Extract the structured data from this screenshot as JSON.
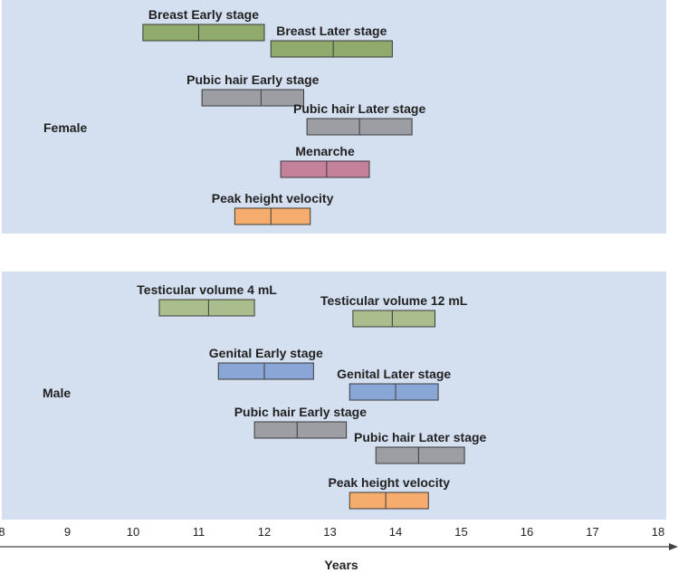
{
  "chart_data": {
    "type": "range-bar",
    "xlabel": "Years",
    "xlim": [
      8,
      18
    ],
    "x_ticks": [
      8,
      9,
      10,
      11,
      12,
      13,
      14,
      15,
      16,
      17,
      18
    ],
    "colors": {
      "panel": "#d4dff0",
      "breast": "#8faa6c",
      "pubic_hair": "#9d9ea3",
      "menarche": "#c5809a",
      "peak_height": "#f6ac6c",
      "genital": "#89a6d7",
      "testicular": "#aabd8d"
    },
    "groups": [
      {
        "label": "Female",
        "bars": [
          {
            "label": "Breast Early stage",
            "start": 10.15,
            "median": 11.0,
            "end": 12.0,
            "color": "breast"
          },
          {
            "label": "Breast Later stage",
            "start": 12.1,
            "median": 13.05,
            "end": 13.95,
            "color": "breast"
          },
          {
            "label": "Pubic hair Early stage",
            "start": 11.05,
            "median": 11.95,
            "end": 12.6,
            "color": "pubic_hair"
          },
          {
            "label": "Pubic hair Later stage",
            "start": 12.65,
            "median": 13.45,
            "end": 14.25,
            "color": "pubic_hair"
          },
          {
            "label": "Menarche",
            "start": 12.25,
            "median": 12.95,
            "end": 13.6,
            "color": "menarche"
          },
          {
            "label": "Peak height velocity",
            "start": 11.55,
            "median": 12.1,
            "end": 12.7,
            "color": "peak_height"
          }
        ]
      },
      {
        "label": "Male",
        "bars": [
          {
            "label": "Testicular volume 4 mL",
            "start": 10.4,
            "median": 11.15,
            "end": 11.85,
            "color": "testicular"
          },
          {
            "label": "Testicular volume 12 mL",
            "start": 13.35,
            "median": 13.95,
            "end": 14.6,
            "color": "testicular"
          },
          {
            "label": "Genital Early stage",
            "start": 11.3,
            "median": 12.0,
            "end": 12.75,
            "color": "genital"
          },
          {
            "label": "Genital Later stage",
            "start": 13.3,
            "median": 14.0,
            "end": 14.65,
            "color": "genital"
          },
          {
            "label": "Pubic hair Early stage",
            "start": 11.85,
            "median": 12.5,
            "end": 13.25,
            "color": "pubic_hair"
          },
          {
            "label": "Pubic hair Later stage",
            "start": 13.7,
            "median": 14.35,
            "end": 15.05,
            "color": "pubic_hair"
          },
          {
            "label": "Peak height velocity",
            "start": 13.3,
            "median": 13.85,
            "end": 14.5,
            "color": "peak_height"
          }
        ]
      }
    ]
  }
}
